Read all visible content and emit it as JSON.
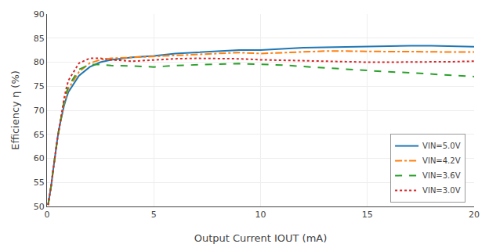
{
  "chart_data": {
    "type": "line",
    "xlabel": "Output Current IOUT (mA)",
    "ylabel": "Efficiency η (%)",
    "x": [
      0.05,
      0.1,
      0.2,
      0.3,
      0.4,
      0.5,
      0.6,
      0.7,
      0.8,
      0.9,
      1.0,
      1.5,
      2.0,
      2.5,
      3.0,
      4.0,
      5.0,
      6.0,
      7.0,
      8.0,
      9.0,
      10.0,
      11.0,
      12.0,
      13.0,
      14.0,
      15.0,
      16.0,
      17.0,
      18.0,
      19.0,
      20.0
    ],
    "series": [
      {
        "name": "VIN=5.0V",
        "line_style": "solid",
        "values": [
          50.3,
          51.5,
          54.5,
          58.0,
          61.5,
          64.5,
          67.0,
          69.2,
          71.0,
          72.5,
          73.8,
          77.2,
          79.0,
          80.0,
          80.5,
          81.0,
          81.3,
          81.8,
          82.0,
          82.3,
          82.5,
          82.5,
          82.8,
          83.0,
          83.1,
          83.2,
          83.3,
          83.4,
          83.4,
          83.4,
          83.3,
          83.2
        ]
      },
      {
        "name": "VIN=4.2V",
        "line_style": "dashdot",
        "values": [
          50.3,
          51.5,
          54.5,
          58.0,
          61.5,
          64.5,
          67.0,
          69.5,
          71.5,
          73.0,
          74.5,
          78.0,
          79.8,
          80.5,
          80.8,
          81.0,
          81.2,
          81.5,
          81.7,
          81.9,
          82.0,
          81.8,
          82.0,
          82.2,
          82.3,
          82.3,
          82.2,
          82.2,
          82.2,
          82.1,
          82.1,
          82.1
        ]
      },
      {
        "name": "VIN=3.6V",
        "line_style": "dash",
        "values": [
          50.3,
          51.5,
          54.5,
          58.0,
          61.5,
          64.5,
          67.0,
          69.5,
          71.8,
          73.5,
          75.0,
          78.5,
          79.5,
          79.5,
          79.3,
          79.2,
          79.0,
          79.3,
          79.5,
          79.6,
          79.7,
          79.6,
          79.4,
          79.1,
          78.8,
          78.5,
          78.3,
          78.0,
          77.8,
          77.5,
          77.3,
          77.0
        ]
      },
      {
        "name": "VIN=3.0V",
        "line_style": "dot",
        "values": [
          50.3,
          51.5,
          54.5,
          58.0,
          61.5,
          64.5,
          67.0,
          70.0,
          72.5,
          74.5,
          76.2,
          79.8,
          80.8,
          80.8,
          80.5,
          80.2,
          80.5,
          80.7,
          80.8,
          80.8,
          80.7,
          80.5,
          80.4,
          80.3,
          80.2,
          80.0,
          80.0,
          80.0,
          80.0,
          80.0,
          80.1,
          80.2
        ]
      }
    ],
    "xlim": [
      0,
      20
    ],
    "ylim": [
      50,
      90
    ],
    "xticks": [
      0,
      5,
      10,
      15,
      20
    ],
    "yticks": [
      50,
      55,
      60,
      65,
      70,
      75,
      80,
      85,
      90
    ],
    "grid": true,
    "legend": "lower right"
  }
}
